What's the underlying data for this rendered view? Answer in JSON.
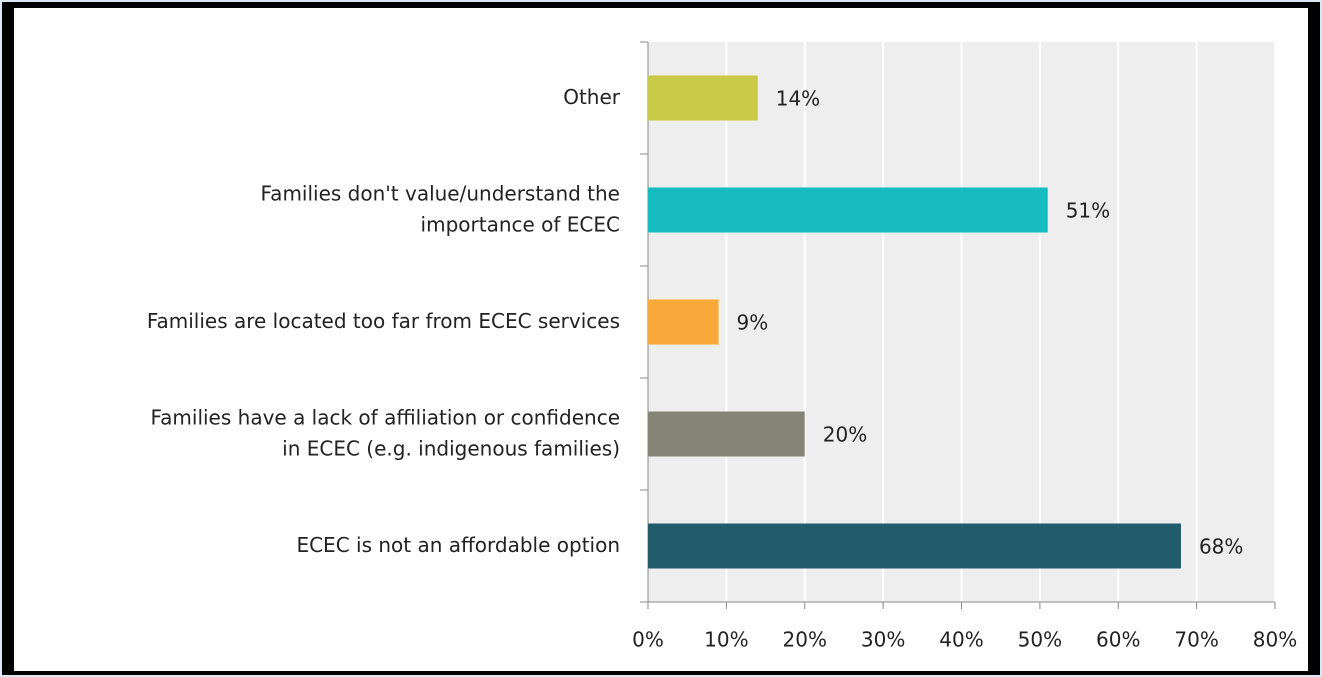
{
  "chart_data": {
    "type": "bar",
    "orientation": "horizontal",
    "categories": [
      "Other",
      "Families don't value/understand the\nimportance of ECEC",
      "Families are located too far from ECEC services",
      "Families have a lack of affiliation or confidence\nin ECEC (e.g. indigenous families)",
      "ECEC is not an affordable option"
    ],
    "values": [
      14,
      51,
      9,
      20,
      68
    ],
    "value_labels": [
      "14%",
      "51%",
      "9%",
      "20%",
      "68%"
    ],
    "colors": [
      "#c9c94a",
      "#17bcc0",
      "#f9a93a",
      "#858577",
      "#225b6a"
    ],
    "xlim": [
      0,
      80
    ],
    "xticks": [
      {
        "value": 0,
        "label": "0%"
      },
      {
        "value": 10,
        "label": "10%"
      },
      {
        "value": 20,
        "label": "20%"
      },
      {
        "value": 30,
        "label": "30%"
      },
      {
        "value": 40,
        "label": "40%"
      },
      {
        "value": 50,
        "label": "50%"
      },
      {
        "value": 60,
        "label": "60%"
      },
      {
        "value": 70,
        "label": "70%"
      },
      {
        "value": 80,
        "label": "80%"
      }
    ],
    "grid": true
  }
}
